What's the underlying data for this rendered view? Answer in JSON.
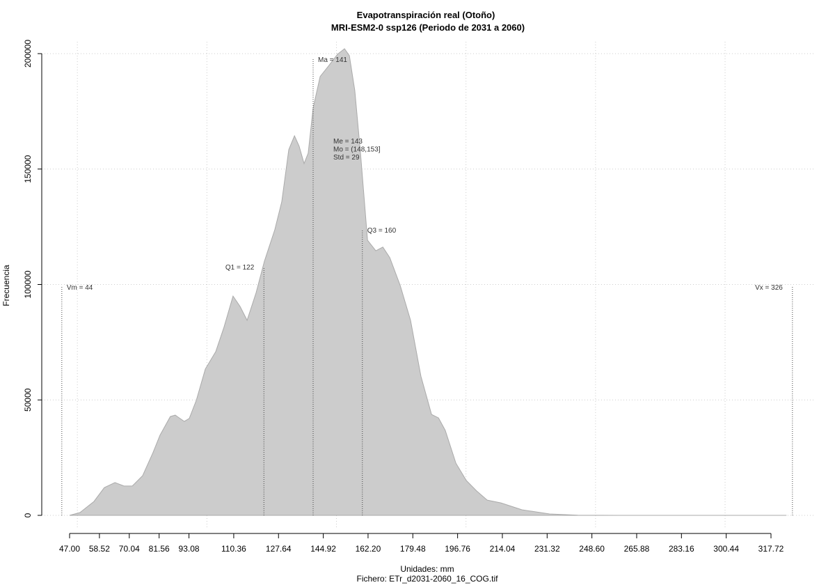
{
  "chart_data": {
    "type": "area",
    "title": "Evapotranspiración real (Otoño)",
    "subtitle": "MRI-ESM2-0 ssp126 (Periodo de 2031 a 2060)",
    "x_label": "Unidades: mm",
    "caption": "Fichero: ETr_d2031-2060_16_COG.tif",
    "y_label": "Frecuencia",
    "color": "#cccccc",
    "x": [
      47,
      51,
      56.4,
      60.4,
      64.5,
      68,
      71.2,
      75.2,
      79.2,
      81.9,
      85.9,
      87.8,
      91.3,
      93.2,
      95.9,
      99.4,
      103.4,
      106.6,
      110.1,
      112.8,
      115.5,
      119,
      122.2,
      126.2,
      128.9,
      131.6,
      133.8,
      135.6,
      137.5,
      139.1,
      141,
      143.7,
      146.9,
      150.4,
      153.1,
      155,
      157.1,
      159.3,
      162,
      165.2,
      167.9,
      170.6,
      174.6,
      178.6,
      182.6,
      186.7,
      189.4,
      192,
      196.1,
      200.1,
      204.1,
      208.2,
      213.5,
      221.6,
      232.3,
      243.1,
      261.9,
      323.7
    ],
    "values": [
      0,
      1200,
      6000,
      12000,
      14200,
      12700,
      12700,
      17200,
      27200,
      34700,
      42800,
      43400,
      40700,
      42000,
      49800,
      63400,
      70900,
      81500,
      95000,
      90500,
      84500,
      96500,
      110100,
      123700,
      135800,
      158400,
      164400,
      159900,
      152400,
      156900,
      176500,
      190100,
      194600,
      199700,
      202100,
      199100,
      184000,
      156900,
      119200,
      114600,
      116200,
      111600,
      99600,
      84500,
      60300,
      43700,
      42200,
      36800,
      22600,
      15100,
      10600,
      6600,
      5400,
      2400,
      600,
      100,
      0,
      0
    ],
    "xlim": [
      47,
      317.72
    ],
    "xticks": [
      {
        "value": 47,
        "label": "47.00"
      },
      58.52,
      70.04,
      81.56,
      93.08,
      110.36,
      127.64,
      144.92,
      {
        "value": 162.2,
        "label": "162.20"
      },
      179.48,
      196.76,
      214.04,
      231.32,
      {
        "value": 248.6,
        "label": "248.60"
      },
      265.88,
      283.16,
      300.44,
      317.72
    ],
    "xgrid": [
      50,
      100,
      150,
      200,
      250,
      300
    ],
    "ylim": [
      0,
      200000
    ],
    "yticks": [
      0,
      50000,
      100000,
      150000,
      200000
    ],
    "grid": true,
    "markers": [
      {
        "label": "Vm = 44",
        "value": 44,
        "top": 99000,
        "side": "right"
      },
      {
        "label": "Q1 = 122",
        "value": 122,
        "top": 107700,
        "side": "left"
      },
      {
        "label": "Ma = 141",
        "value": 141,
        "top": 197600,
        "side": "right"
      },
      {
        "label": "Q3 = 160",
        "value": 160,
        "top": 123700,
        "side": "right"
      },
      {
        "label": "Vx = 326",
        "value": 326,
        "top": 99000,
        "side": "left"
      }
    ],
    "stats": [
      "Me = 143",
      "Mo = (148,153]",
      "Std = 29"
    ]
  }
}
